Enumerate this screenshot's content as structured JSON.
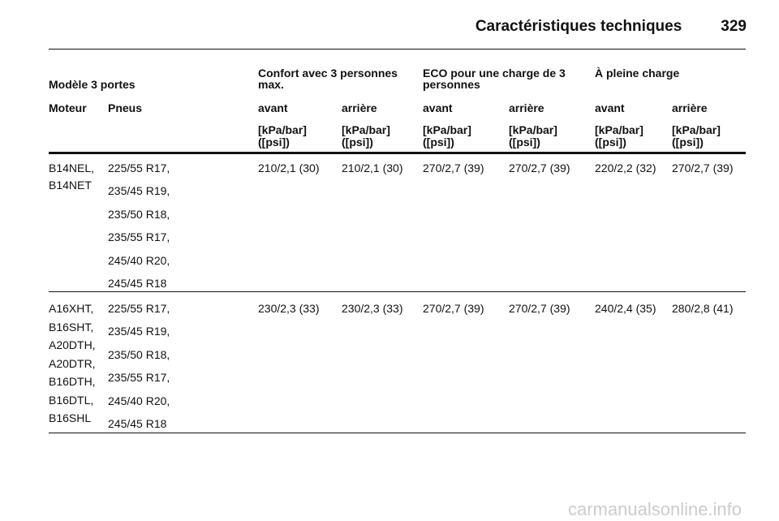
{
  "header": {
    "title": "Caractéristiques techniques",
    "page": "329"
  },
  "table": {
    "model_label": "Modèle 3 portes",
    "groups": [
      "Confort avec 3 personnes max.",
      "ECO pour une charge de 3 personnes",
      "À pleine charge"
    ],
    "col_headers": [
      "Moteur",
      "Pneus",
      "avant",
      "arrière",
      "avant",
      "arrière",
      "avant",
      "arrière"
    ],
    "units": [
      "[kPa/bar] ([psi])",
      "[kPa/bar] ([psi])",
      "[kPa/bar] ([psi])",
      "[kPa/bar] ([psi])",
      "[kPa/bar] ([psi])",
      "[kPa/bar] ([psi])"
    ],
    "rows": [
      {
        "engines": [
          "B14NEL,",
          "B14NET"
        ],
        "tyres": [
          "225/55 R17,",
          "235/45 R19,",
          "235/50 R18,",
          "235/55 R17,",
          "245/40 R20,",
          "245/45 R18"
        ],
        "pressures": [
          "210/2,1 (30)",
          "210/2,1 (30)",
          "270/2,7 (39)",
          "270/2,7 (39)",
          "220/2,2 (32)",
          "270/2,7 (39)"
        ]
      },
      {
        "engines": [
          "A16XHT,",
          "B16SHT,",
          "A20DTH,",
          "A20DTR,",
          "B16DTH,",
          "B16DTL,",
          "B16SHL"
        ],
        "tyres": [
          "225/55 R17,",
          "235/45 R19,",
          "235/50 R18,",
          "235/55 R17,",
          "245/40 R20,",
          "245/45 R18"
        ],
        "pressures": [
          "230/2,3 (33)",
          "230/2,3 (33)",
          "270/2,7 (39)",
          "270/2,7 (39)",
          "240/2,4 (35)",
          "280/2,8 (41)"
        ]
      }
    ]
  },
  "watermark": "carmanualsonline.info"
}
